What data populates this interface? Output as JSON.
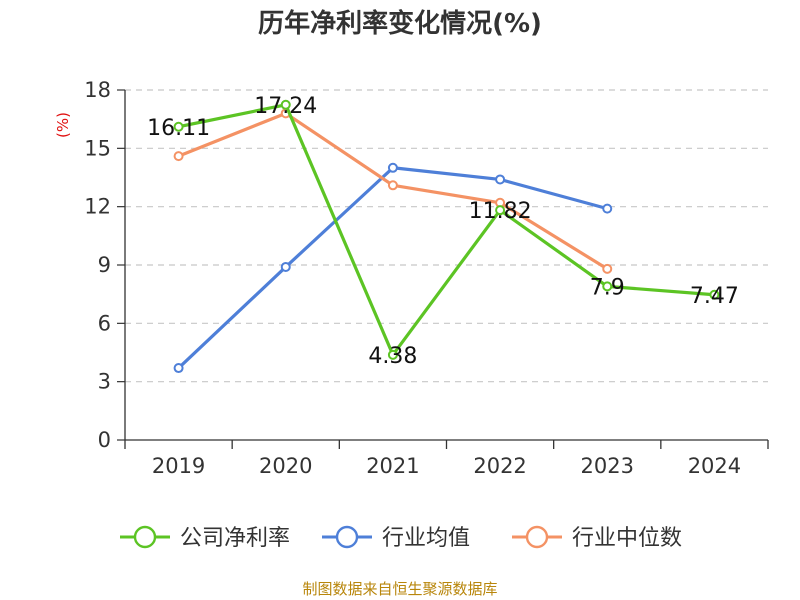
{
  "chart_data": {
    "type": "line",
    "title": "历年净利率变化情况(%)",
    "ylabel": "(%)",
    "categories": [
      "2019",
      "2020",
      "2021",
      "2022",
      "2023",
      "2024"
    ],
    "ylim": [
      0,
      18
    ],
    "yticks": [
      0,
      3,
      6,
      9,
      12,
      15,
      18
    ],
    "grid": true,
    "legend_position": "bottom",
    "series": [
      {
        "name": "公司净利率",
        "color": "#5cc424",
        "values": [
          16.11,
          17.24,
          4.38,
          11.82,
          7.9,
          7.47
        ],
        "labels": [
          "16.11",
          "17.24",
          "4.38",
          "11.82",
          "7.9",
          "7.47"
        ]
      },
      {
        "name": "行业均值",
        "color": "#4e7fd8",
        "values": [
          3.7,
          8.9,
          14.0,
          13.4,
          11.9,
          null
        ]
      },
      {
        "name": "行业中位数",
        "color": "#f49264",
        "values": [
          14.6,
          16.8,
          13.1,
          12.2,
          8.8,
          null
        ]
      }
    ]
  },
  "footer": {
    "source": "制图数据来自恒生聚源数据库"
  }
}
